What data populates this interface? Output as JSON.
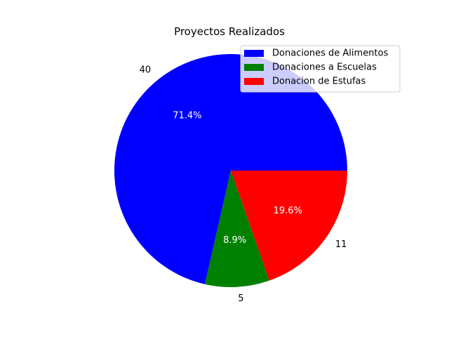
{
  "chart_data": {
    "type": "pie",
    "title": "Proyectos Realizados",
    "slices": [
      {
        "label": "Donaciones de Alimentos",
        "value": 40,
        "value_label": "40",
        "percent_label": "71.4%",
        "color": "#0000ff"
      },
      {
        "label": "Donaciones a Escuelas",
        "value": 5,
        "value_label": "5",
        "percent_label": "8.9%",
        "color": "#008000"
      },
      {
        "label": "Donacion de Estufas",
        "value": 11,
        "value_label": "11",
        "percent_label": "19.6%",
        "color": "#ff0000"
      }
    ],
    "start_angle_deg": 0,
    "direction": "counterclockwise",
    "legend_position": "top-right"
  }
}
